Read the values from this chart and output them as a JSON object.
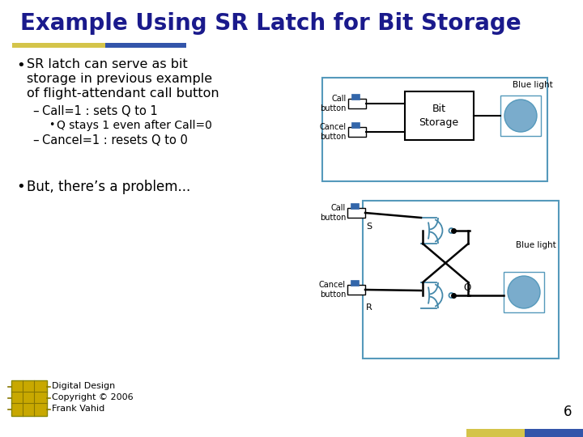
{
  "title": "Example Using SR Latch for Bit Storage",
  "title_color": "#1a1a8c",
  "bg_color": "#ffffff",
  "bullet1_line1": "SR latch can serve as bit",
  "bullet1_line2": "storage in previous example",
  "bullet1_line3": "of flight-attendant call button",
  "sub1": "Call=1 : sets Q to 1",
  "subsub1": "Q stays 1 even after Call=0",
  "sub2": "Cancel=1 : resets Q to 0",
  "bullet2": "But, there’s a problem...",
  "footer1": "Digital Design",
  "footer2": "Copyright © 2006",
  "footer3": "Frank Vahid",
  "page_num": "6",
  "box_border": "#5599bb",
  "gate_color": "#4488aa",
  "button_blue": "#3366aa",
  "circle_blue": "#7aaccc",
  "bar_yellow": "#d4c44a",
  "bar_blue": "#3355aa"
}
